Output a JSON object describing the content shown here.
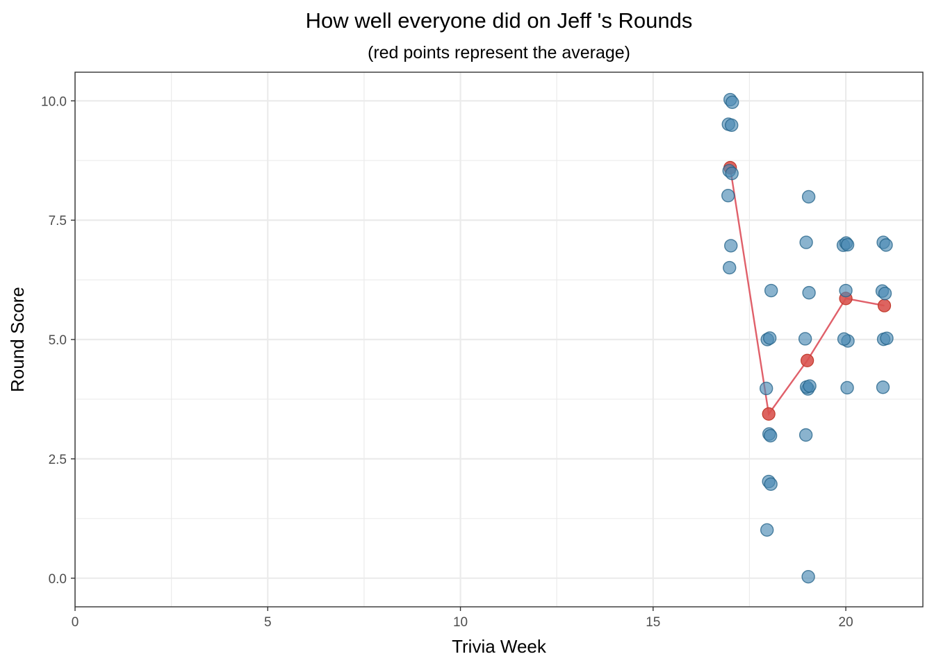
{
  "chart_data": {
    "type": "scatter",
    "title": "How well everyone did on Jeff 's Rounds",
    "subtitle": "(red points represent the average)",
    "xlabel": "Trivia Week",
    "ylabel": "Round Score",
    "xlim": [
      0,
      22
    ],
    "ylim": [
      -0.6,
      10.6
    ],
    "x_ticks": [
      0,
      5,
      10,
      15,
      20
    ],
    "x_tick_labels": [
      "0",
      "5",
      "10",
      "15",
      "20"
    ],
    "y_ticks": [
      0,
      2.5,
      5,
      7.5,
      10
    ],
    "y_tick_labels": [
      "0.0",
      "2.5",
      "5.0",
      "7.5",
      "10.0"
    ],
    "x_minor": [
      2.5,
      7.5,
      12.5,
      17.5
    ],
    "y_minor": [
      1.25,
      3.75,
      6.25,
      8.75
    ],
    "grid": true,
    "colors": {
      "points": "#4b8bb3",
      "points_stroke": "#1f5f85",
      "average": "#d9534f",
      "average_line": "#e0606a",
      "grid": "#ebebeb",
      "panel_border": "#333333"
    },
    "series": [
      {
        "values": [
          {
            "x": 17,
            "y": 10
          },
          {
            "x": 17,
            "y": 10
          },
          {
            "x": 17,
            "y": 9.5
          },
          {
            "x": 17,
            "y": 9.5
          },
          {
            "x": 17,
            "y": 8.5
          },
          {
            "x": 17,
            "y": 8.5
          },
          {
            "x": 17,
            "y": 8
          },
          {
            "x": 17,
            "y": 7
          },
          {
            "x": 17,
            "y": 6.5
          },
          {
            "x": 18,
            "y": 6
          },
          {
            "x": 18,
            "y": 5
          },
          {
            "x": 18,
            "y": 5
          },
          {
            "x": 18,
            "y": 4
          },
          {
            "x": 18,
            "y": 3
          },
          {
            "x": 18,
            "y": 3
          },
          {
            "x": 18,
            "y": 2
          },
          {
            "x": 18,
            "y": 2
          },
          {
            "x": 18,
            "y": 1
          },
          {
            "x": 19,
            "y": 8
          },
          {
            "x": 19,
            "y": 7
          },
          {
            "x": 19,
            "y": 6
          },
          {
            "x": 19,
            "y": 5
          },
          {
            "x": 19,
            "y": 4
          },
          {
            "x": 19,
            "y": 4
          },
          {
            "x": 19,
            "y": 4
          },
          {
            "x": 19,
            "y": 3
          },
          {
            "x": 19,
            "y": 0
          },
          {
            "x": 20,
            "y": 7
          },
          {
            "x": 20,
            "y": 7
          },
          {
            "x": 20,
            "y": 7
          },
          {
            "x": 20,
            "y": 6
          },
          {
            "x": 20,
            "y": 5
          },
          {
            "x": 20,
            "y": 5
          },
          {
            "x": 20,
            "y": 4
          },
          {
            "x": 21,
            "y": 7
          },
          {
            "x": 21,
            "y": 7
          },
          {
            "x": 21,
            "y": 6
          },
          {
            "x": 21,
            "y": 6
          },
          {
            "x": 21,
            "y": 5
          },
          {
            "x": 21,
            "y": 5
          },
          {
            "x": 21,
            "y": 4
          }
        ]
      },
      {
        "values": [
          {
            "x": 17,
            "y": 8.6
          },
          {
            "x": 18,
            "y": 3.44
          },
          {
            "x": 19,
            "y": 4.56
          },
          {
            "x": 20,
            "y": 5.86
          },
          {
            "x": 21,
            "y": 5.71
          }
        ]
      }
    ]
  }
}
